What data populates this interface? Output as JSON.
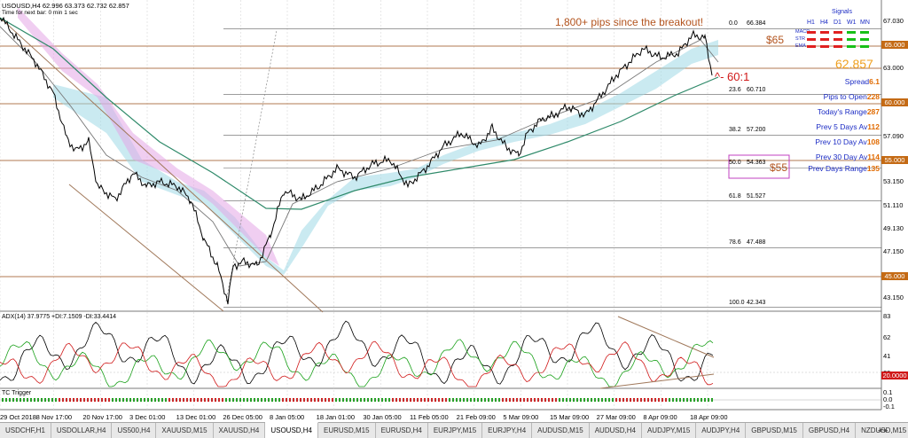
{
  "symbol_line": "USOUSD,H4  62.996 63.373 62.732 62.857",
  "subtitle_line": "Time for next bar: 0 min 1 sec",
  "price_axis": [
    "67.030",
    "65.000",
    "63.000",
    "60.000",
    "57.090",
    "55.000",
    "53.150",
    "51.110",
    "49.130",
    "47.150",
    "45.000",
    "43.150"
  ],
  "price_axis_highlight": [
    "65.000",
    "60.000",
    "55.000",
    "45.000"
  ],
  "fib_levels": [
    {
      "pct": "0.0",
      "price": "66.384"
    },
    {
      "pct": "23.6",
      "price": "60.710"
    },
    {
      "pct": "38.2",
      "price": "57.200"
    },
    {
      "pct": "50.0",
      "price": "54.363"
    },
    {
      "pct": "61.8",
      "price": "51.527"
    },
    {
      "pct": "78.6",
      "price": "47.488"
    },
    {
      "pct": "100.0",
      "price": "42.343"
    }
  ],
  "annotations": {
    "headline": "1,800+ pips since the breakout!",
    "level_65": "$65",
    "level_55": "$55",
    "current_price": "62.857",
    "ratio": "^- 60:1"
  },
  "signals": {
    "title": "Signals",
    "timeframes": [
      "H1",
      "H4",
      "D1",
      "W1",
      "MN"
    ],
    "rows": [
      {
        "label": "MACD",
        "colors": [
          "#e02020",
          "#e02020",
          "#e02020",
          "#18c018",
          "#18c018"
        ]
      },
      {
        "label": "STR",
        "colors": [
          "#e02020",
          "#e02020",
          "#e02020",
          "#18c018",
          "#18c018"
        ]
      },
      {
        "label": "EMA",
        "colors": [
          "#e02020",
          "#e02020",
          "#e02020",
          "#18c018",
          "#18c018"
        ]
      }
    ]
  },
  "info_panel": [
    {
      "label": "Spread",
      "value": "6.1"
    },
    {
      "label": "Pips to Open",
      "value": "228"
    },
    {
      "label": "Today's Range",
      "value": "287"
    },
    {
      "label": "Prev 5 Days Av",
      "value": "112"
    },
    {
      "label": "Prev 10 Day Av",
      "value": "108"
    },
    {
      "label": "Prev 30 Day Av",
      "value": "114"
    },
    {
      "label": "Prev Days Range",
      "value": "135"
    }
  ],
  "adx": {
    "label": "ADX(14) 37.9775 +DI:7.1509 -DI:33.4414",
    "axis": [
      "83",
      "62",
      "41",
      "20"
    ],
    "current": "20.0000"
  },
  "tc_trigger": {
    "label": "TC Trigger",
    "axis": [
      "0.1",
      "0.0",
      "-0.1"
    ]
  },
  "dates": [
    "29 Oct 2018",
    "8 Nov 17:00",
    "20 Nov 17:00",
    "3 Dec 01:00",
    "13 Dec 01:00",
    "26 Dec 05:00",
    "8 Jan 05:00",
    "18 Jan 01:00",
    "30 Jan 05:00",
    "11 Feb 05:00",
    "21 Feb 09:00",
    "5 Mar 09:00",
    "15 Mar 09:00",
    "27 Mar 09:00",
    "8 Apr 09:00",
    "18 Apr 09:00"
  ],
  "tabs": [
    "USDCHF,H1",
    "USDOLLAR,H4",
    "US500,H4",
    "XAUUSD,M15",
    "XAUUSD,H4",
    "USOUSD,H4",
    "EURUSD,M15",
    "EURUSD,H4",
    "EURJPY,M15",
    "EURJPY,H4",
    "AUDUSD,M15",
    "AUDUSD,H4",
    "AUDJPY,M15",
    "AUDJPY,H4",
    "GBPUSD,M15",
    "GBPUSD,H4",
    "NZDUSD,M15"
  ],
  "active_tab": "USOUSD,H4",
  "colors": {
    "level_line": "#b07a50",
    "annotation": "#b3541e",
    "info_label": "#1b2bc4",
    "info_value": "#e06a00",
    "adx": "#000000",
    "plus_di": "#18a018",
    "minus_di": "#d01818",
    "cloud_bull": "#9fd9e6",
    "cloud_bear": "#e3a6e6",
    "ma_slow": "#2f8a6a"
  }
}
